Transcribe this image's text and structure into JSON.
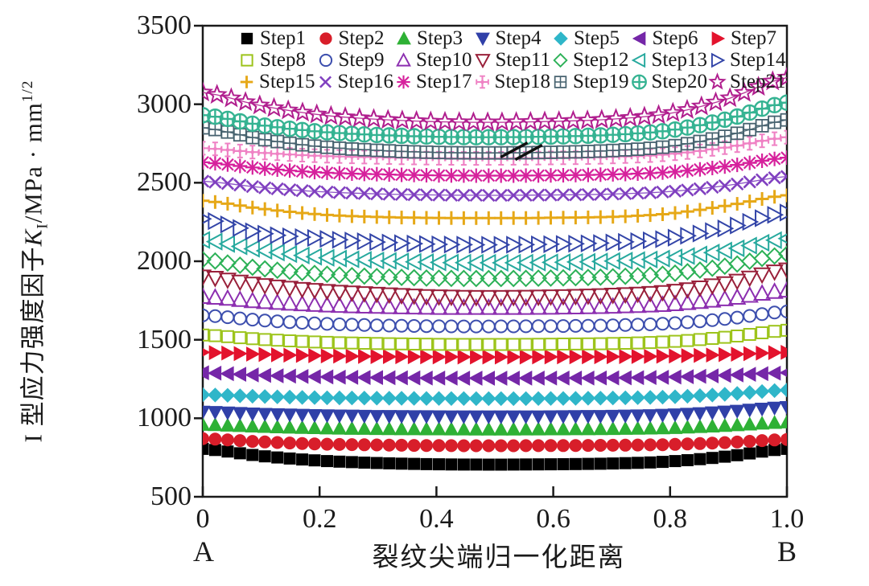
{
  "figure": {
    "x_axis": {
      "label": "裂纹尖端归一化距离",
      "endpoint_left": "A",
      "endpoint_right": "B"
    },
    "y_axis": {
      "label_prefix": "I 型应力强度因子",
      "label_k": "K",
      "label_k_sub": "I",
      "label_unit": "/MPa · mm",
      "label_exp": "1/2"
    }
  },
  "chart_data": {
    "type": "scatter",
    "title": "",
    "xlabel": "裂纹尖端归一化距离",
    "ylabel": "I 型应力强度因子 K_I /MPa·mm^(1/2)",
    "xlim": [
      0,
      1
    ],
    "ylim": [
      500,
      3500
    ],
    "xticks": [
      0,
      0.2,
      0.4,
      0.6,
      0.8,
      1.0
    ],
    "xtick_labels": [
      "0",
      "0.2",
      "0.4",
      "0.6",
      "0.8",
      "1.0"
    ],
    "yticks": [
      500,
      1000,
      1500,
      2000,
      2500,
      3000,
      3500
    ],
    "ytick_labels": [
      "500",
      "1000",
      "1500",
      "2000",
      "2500",
      "3000",
      "3500"
    ],
    "x_endpoints": [
      "A",
      "B"
    ],
    "grid": false,
    "legend_position": "top-inside",
    "x_control": [
      0,
      0.1,
      0.2,
      0.3,
      0.4,
      0.5,
      0.6,
      0.7,
      0.8,
      0.9,
      1.0
    ],
    "series": [
      {
        "label": "Step1",
        "marker": "square",
        "filled": true,
        "color": "#000000",
        "values": [
          805,
          760,
          730,
          715,
          707,
          705,
          707,
          712,
          725,
          758,
          805
        ]
      },
      {
        "label": "Step2",
        "marker": "circle",
        "filled": true,
        "color": "#d81e2a",
        "values": [
          870,
          850,
          836,
          830,
          826,
          825,
          826,
          828,
          833,
          846,
          865
        ]
      },
      {
        "label": "Step3",
        "marker": "triangle-up",
        "filled": true,
        "color": "#2eb135",
        "values": [
          960,
          947,
          938,
          933,
          931,
          930,
          931,
          933,
          939,
          954,
          975
        ]
      },
      {
        "label": "Step4",
        "marker": "triangle-down",
        "filled": true,
        "color": "#3040a8",
        "values": [
          1040,
          1027,
          1018,
          1013,
          1011,
          1010,
          1011,
          1014,
          1022,
          1042,
          1070
        ]
      },
      {
        "label": "Step5",
        "marker": "diamond",
        "filled": true,
        "color": "#2fb6c9",
        "values": [
          1150,
          1139,
          1131,
          1128,
          1126,
          1125,
          1126,
          1129,
          1136,
          1154,
          1180
        ]
      },
      {
        "label": "Step6",
        "marker": "triangle-left",
        "filled": true,
        "color": "#7527a8",
        "values": [
          1290,
          1274,
          1264,
          1259,
          1256,
          1255,
          1256,
          1257,
          1262,
          1274,
          1290
        ]
      },
      {
        "label": "Step7",
        "marker": "triangle-right",
        "filled": true,
        "color": "#e3132d",
        "values": [
          1420,
          1407,
          1398,
          1393,
          1391,
          1390,
          1391,
          1392,
          1396,
          1406,
          1420
        ]
      },
      {
        "label": "Step8",
        "marker": "square",
        "filled": false,
        "color": "#9dc41c",
        "values": [
          1530,
          1503,
          1485,
          1476,
          1471,
          1470,
          1472,
          1476,
          1488,
          1518,
          1560
        ]
      },
      {
        "label": "Step9",
        "marker": "circle",
        "filled": false,
        "color": "#3d4fae",
        "values": [
          1655,
          1624,
          1603,
          1592,
          1586,
          1585,
          1587,
          1592,
          1604,
          1635,
          1680
        ]
      },
      {
        "label": "Step10",
        "marker": "triangle-up",
        "filled": false,
        "color": "#8c2fb0",
        "values": [
          1775,
          1744,
          1723,
          1712,
          1706,
          1705,
          1707,
          1713,
          1727,
          1763,
          1815
        ]
      },
      {
        "label": "Step11",
        "marker": "triangle-down",
        "filled": false,
        "color": "#99203a",
        "values": [
          1900,
          1848,
          1812,
          1790,
          1774,
          1770,
          1774,
          1784,
          1806,
          1862,
          1945
        ]
      },
      {
        "label": "Step12",
        "marker": "diamond",
        "filled": false,
        "color": "#2cb157",
        "values": [
          2010,
          1954,
          1920,
          1902,
          1892,
          1890,
          1893,
          1901,
          1921,
          1972,
          2045
        ]
      },
      {
        "label": "Step13",
        "marker": "triangle-left",
        "filled": false,
        "color": "#27a99e",
        "values": [
          2135,
          2070,
          2026,
          2005,
          1993,
          1990,
          1993,
          2001,
          2021,
          2072,
          2145
        ]
      },
      {
        "label": "Step14",
        "marker": "triangle-right",
        "filled": false,
        "color": "#3345a8",
        "values": [
          2270,
          2179,
          2146,
          2122,
          2108,
          2105,
          2109,
          2119,
          2146,
          2214,
          2310
        ]
      },
      {
        "label": "Step15",
        "marker": "plus",
        "filled": false,
        "color": "#e6a817",
        "values": [
          2385,
          2335,
          2298,
          2282,
          2276,
          2275,
          2277,
          2283,
          2304,
          2356,
          2420
        ]
      },
      {
        "label": "Step16",
        "marker": "x",
        "filled": false,
        "color": "#8040c0",
        "values": [
          2510,
          2470,
          2443,
          2429,
          2422,
          2420,
          2422,
          2428,
          2444,
          2484,
          2540
        ]
      },
      {
        "label": "Step17",
        "marker": "asterisk",
        "filled": false,
        "color": "#d6219c",
        "values": [
          2630,
          2592,
          2566,
          2554,
          2547,
          2545,
          2547,
          2553,
          2568,
          2606,
          2660
        ]
      },
      {
        "label": "Step18",
        "marker": "plus-dot",
        "filled": false,
        "color": "#ef82c4",
        "values": [
          2720,
          2691,
          2671,
          2662,
          2656,
          2655,
          2658,
          2664,
          2682,
          2727,
          2790
        ]
      },
      {
        "label": "Step19",
        "marker": "square-plus",
        "filled": false,
        "color": "#47626f",
        "values": [
          2850,
          2778,
          2730,
          2706,
          2693,
          2690,
          2694,
          2705,
          2732,
          2801,
          2900
        ]
      },
      {
        "label": "Step20",
        "marker": "circle-plus",
        "filled": false,
        "color": "#35b392",
        "values": [
          2930,
          2867,
          2825,
          2804,
          2793,
          2790,
          2794,
          2805,
          2834,
          2907,
          3010
        ]
      },
      {
        "label": "Step21",
        "marker": "star",
        "filled": false,
        "color": "#b01e8e",
        "values": [
          3075,
          2991,
          2933,
          2904,
          2889,
          2885,
          2891,
          2905,
          2942,
          3036,
          3170
        ]
      }
    ],
    "annotations": [
      {
        "type": "slash-mark",
        "color": "#111111",
        "lines": [
          [
            0.51,
            2663,
            0.556,
            2755
          ],
          [
            0.535,
            2647,
            0.581,
            2740
          ]
        ]
      }
    ]
  }
}
